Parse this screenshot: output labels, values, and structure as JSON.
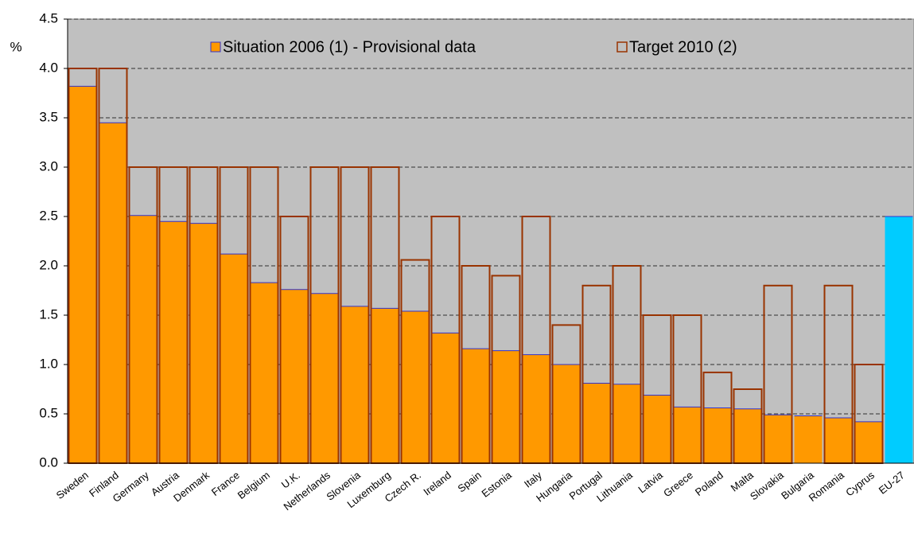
{
  "chart_data": {
    "type": "bar",
    "y_label": "%",
    "categories": [
      "Sweden",
      "Finland",
      "Germany",
      "Austria",
      "Denmark",
      "France",
      "Belgium",
      "U.K.",
      "Netherlands",
      "Slovenia",
      "Luxemburg",
      "Czech R.",
      "Ireland",
      "Spain",
      "Estonia",
      "Italy",
      "Hungaria",
      "Portugal",
      "Lithuania",
      "Latvia",
      "Greece",
      "Poland",
      "Malta",
      "Slovakia",
      "Bulgaria",
      "Romania",
      "Cyprus",
      "EU-27"
    ],
    "series": [
      {
        "name": "Situation 2006 (1) - Provisional data",
        "color": "#ff9900",
        "edge_color": "#3333cc",
        "values": [
          3.82,
          3.45,
          2.51,
          2.45,
          2.43,
          2.12,
          1.83,
          1.76,
          1.72,
          1.59,
          1.57,
          1.54,
          1.32,
          1.16,
          1.14,
          1.1,
          1.0,
          0.81,
          0.8,
          0.69,
          0.57,
          0.56,
          0.55,
          0.49,
          0.48,
          0.46,
          0.42,
          2.5
        ],
        "highlight": {
          "index": 27,
          "color": "#00ccff"
        }
      },
      {
        "name": "Target 2010 (2)",
        "color": "#993300",
        "values": [
          4,
          4,
          3,
          3,
          3,
          3,
          3,
          2.5,
          3,
          3,
          3,
          2.06,
          2.5,
          2,
          1.9,
          2.5,
          1.4,
          1.8,
          2,
          1.5,
          1.5,
          0.92,
          0.75,
          1.8,
          null,
          1.8,
          1.0,
          null
        ]
      }
    ],
    "ylim": [
      0,
      4.5
    ],
    "yticks": [
      {
        "value": 0,
        "label": "0.0"
      },
      {
        "value": 0.5,
        "label": "0.5"
      },
      {
        "value": 1,
        "label": "1.0"
      },
      {
        "value": 1.5,
        "label": "1.5"
      },
      {
        "value": 2,
        "label": "2.0"
      },
      {
        "value": 2.5,
        "label": "2.5"
      },
      {
        "value": 3,
        "label": "3.0"
      },
      {
        "value": 3.5,
        "label": "3.5"
      },
      {
        "value": 4,
        "label": "4.0"
      },
      {
        "value": 4.5,
        "label": "4.5"
      }
    ],
    "grid": true,
    "background": "#c0c0c0"
  }
}
